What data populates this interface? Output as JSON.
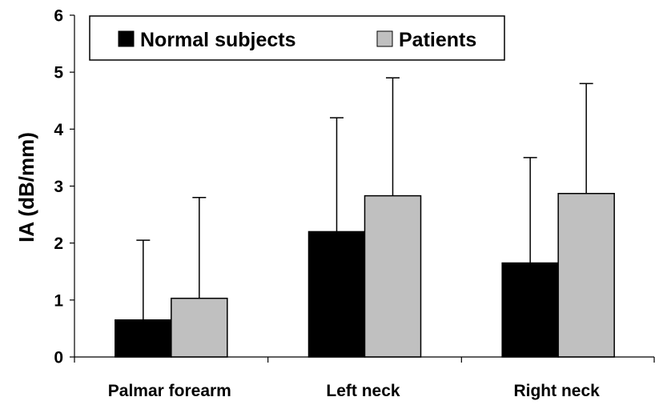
{
  "chart_data": {
    "type": "bar",
    "ylabel": "IA (dB/mm)",
    "xlabel": "",
    "categories": [
      "Palmar forearm",
      "Left neck",
      "Right neck"
    ],
    "ylim": [
      0,
      6
    ],
    "yticks": [
      "0",
      "1",
      "2",
      "3",
      "4",
      "5",
      "6"
    ],
    "series": [
      {
        "name": "Normal subjects",
        "color": "#000000",
        "values": [
          0.65,
          2.2,
          1.65
        ],
        "error_upper": [
          2.05,
          4.2,
          3.5
        ]
      },
      {
        "name": "Patients",
        "color": "#c0c0c0",
        "values": [
          1.03,
          2.83,
          2.87
        ],
        "error_upper": [
          2.8,
          4.9,
          4.8
        ]
      }
    ],
    "legend_position": "top-left",
    "grid": false
  }
}
